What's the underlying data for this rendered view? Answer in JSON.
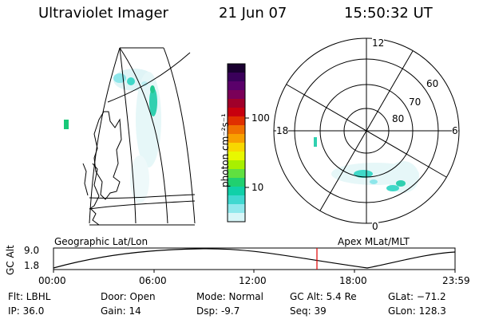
{
  "header": {
    "instrument": "Ultraviolet Imager",
    "date": "21 Jun 07",
    "time": "15:50:32 UT"
  },
  "geo_panel": {
    "caption": "Geographic Lat/Lon"
  },
  "colorbar": {
    "unit_label": "photon cm⁻²s⁻¹",
    "tick_labels": [
      "100",
      "10"
    ],
    "colors": [
      "#1a0030",
      "#3a005a",
      "#5a006a",
      "#7a0058",
      "#a0002a",
      "#c8000e",
      "#e03000",
      "#f07000",
      "#f8a000",
      "#f8d800",
      "#e8f800",
      "#a8f000",
      "#60e040",
      "#20d070",
      "#10d0a8",
      "#40d8d0",
      "#90e8ec",
      "#d8f6f8"
    ]
  },
  "polar_panel": {
    "caption": "Apex MLat/MLT",
    "mlt_labels": {
      "top": "12",
      "left": "18",
      "right": "6",
      "bottom": "0"
    },
    "lat_labels": [
      "60",
      "70",
      "80"
    ]
  },
  "timeline": {
    "y_label": "GC Alt",
    "y_ticks": [
      "9.0",
      "1.8"
    ],
    "x_ticks": [
      "00:00",
      "06:00",
      "12:00",
      "18:00",
      "23:59"
    ],
    "marker_color": "#e00000"
  },
  "info": {
    "filter": "Flt: LBHL",
    "ip": "IP: 36.0",
    "door": "Door: Open",
    "gain": "Gain: 14",
    "mode": "Mode: Normal",
    "dsp": "Dsp:   -9.7",
    "gc_alt": "GC Alt: 5.4 Re",
    "seq": "Seq: 39",
    "glat": "GLat: −71.2",
    "glon": "GLon: 128.3"
  }
}
